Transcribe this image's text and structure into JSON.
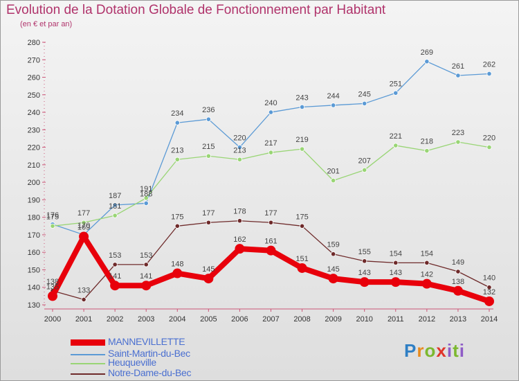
{
  "header": {
    "title": "Evolution de la Dotation Globale de Fonctionnement par Habitant",
    "subtitle": "(en € et par an)"
  },
  "logo": {
    "text": "Proxiti"
  },
  "chart_data": {
    "type": "line",
    "x": [
      "2000",
      "2001",
      "2002",
      "2003",
      "2004",
      "2005",
      "2006",
      "2007",
      "2008",
      "2009",
      "2010",
      "2011",
      "2012",
      "2013",
      "2014"
    ],
    "ylim": [
      130,
      280
    ],
    "yticks": [
      130,
      140,
      150,
      160,
      170,
      180,
      190,
      200,
      210,
      220,
      230,
      240,
      250,
      260,
      270,
      280
    ],
    "grid": false,
    "legend_position": "bottom-left",
    "series": [
      {
        "name": "MANNEVILLETTE",
        "color": "#e8000b",
        "values": [
          135,
          169,
          141,
          141,
          148,
          145,
          162,
          161,
          151,
          145,
          143,
          143,
          142,
          138,
          132
        ]
      },
      {
        "name": "Saint-Martin-du-Bec",
        "color": "#5b9ad5",
        "values": [
          176,
          170,
          187,
          188,
          234,
          236,
          220,
          240,
          243,
          244,
          245,
          251,
          269,
          261,
          262
        ]
      },
      {
        "name": "Heuqueville",
        "color": "#99d575",
        "values": [
          175,
          177,
          181,
          191,
          213,
          215,
          213,
          217,
          219,
          201,
          207,
          221,
          218,
          223,
          220
        ]
      },
      {
        "name": "Notre-Dame-du-Bec",
        "color": "#6e2a2a",
        "values": [
          138,
          133,
          153,
          153,
          175,
          177,
          178,
          177,
          175,
          159,
          155,
          154,
          154,
          149,
          140
        ]
      }
    ]
  }
}
